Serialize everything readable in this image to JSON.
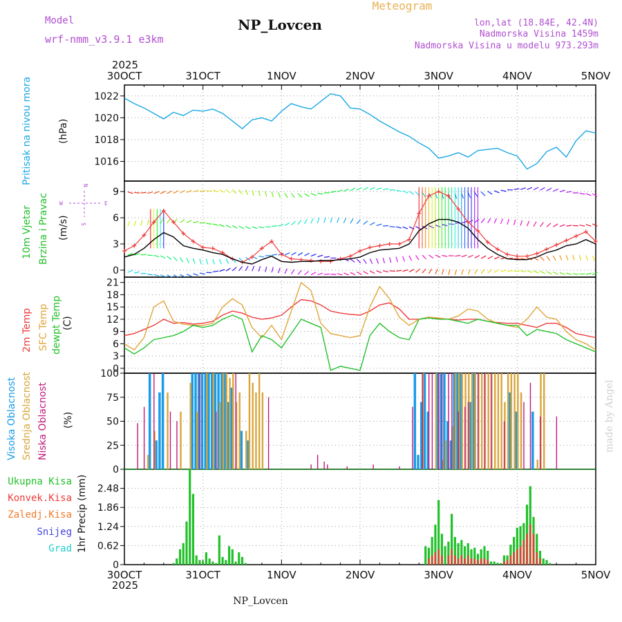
{
  "header": {
    "model_label": "Model",
    "model_name": "wrf-nmm_v3.9.1  e3km",
    "station": "NP_Lovcen",
    "product": "Meteogram",
    "coords": "lon,lat (18.84E, 42.4N)",
    "elevation": "Nadmorska Visina 1459m",
    "model_elevation": "Nadmorska Visina u modelu 973.293m",
    "footer_station": "NP_Lovcen",
    "credit": "made by Angel",
    "year_top": "2025",
    "year_bottom": "2025"
  },
  "colors": {
    "pressure": "#1aa7e6",
    "t2m": "#ee3a3a",
    "sfc": "#e0a53a",
    "dew": "#22c02a",
    "high_cloud": "#1a9be8",
    "mid_cloud": "#d9a53a",
    "low_cloud": "#c0187a",
    "total_precip": "#22c02a",
    "conv_precip": "#ee3a3a",
    "frozen_precip": "#f07a2a",
    "snow": "#4444dd",
    "graupel": "#22cccc",
    "title_purple": "#b04fd0",
    "title_orange": "#e8b050",
    "wind_speed_line": "#000000",
    "gust_line": "#ee3a3a"
  },
  "x_axis": {
    "days": [
      "30OCT",
      "31OCT",
      "1NOV",
      "2NOV",
      "3NOV",
      "4NOV",
      "5NOV"
    ],
    "hours_span": 144
  },
  "panels": {
    "pressure": {
      "ylabel_name": "Pritisak na nivou mora",
      "unit": "(hPa)"
    },
    "wind": {
      "name1": "10m Vjetar",
      "name2": "Brzina i Pravac",
      "unit": "(m/s)",
      "compass_n": "N",
      "compass_s": "S",
      "compass_e": "E",
      "compass_w": "W"
    },
    "temperature": {
      "name1": "2m Temp",
      "name2": "SFC Temp",
      "name3": "dewpt Temp",
      "unit": "(C)"
    },
    "cloud": {
      "name1": "Visoka Oblacnost",
      "name2": "Srednja Oblacnost",
      "name3": "Niska Oblacnost",
      "unit": "(%)"
    },
    "precip": {
      "name1": "Ukupna Kisa",
      "name2": "Konvek.Kisa",
      "name3": "Zaledj.Kisa",
      "name4": "Snijeg",
      "name5": "Grad",
      "unit": "1hr Precip (mm)"
    }
  },
  "chart_data": [
    {
      "type": "line",
      "title": "Pritisak na nivou mora",
      "ylabel": "(hPa)",
      "ylim": [
        1014.2,
        1023
      ],
      "yticks": [
        1016,
        1018,
        1020,
        1022
      ],
      "x_hours": [
        0,
        3,
        6,
        9,
        12,
        15,
        18,
        21,
        24,
        27,
        30,
        33,
        36,
        39,
        42,
        45,
        48,
        51,
        54,
        57,
        60,
        63,
        66,
        69,
        72,
        75,
        78,
        81,
        84,
        87,
        90,
        93,
        96,
        99,
        102,
        105,
        108,
        111,
        114,
        117,
        120,
        123,
        126,
        129,
        132,
        135,
        138,
        141,
        144
      ],
      "series": [
        {
          "name": "SLP",
          "values": [
            1021.8,
            1021.3,
            1020.9,
            1020.4,
            1019.9,
            1020.5,
            1020.2,
            1020.7,
            1020.6,
            1020.8,
            1020.4,
            1019.7,
            1019.0,
            1019.8,
            1020.0,
            1019.7,
            1020.6,
            1021.3,
            1021.0,
            1020.8,
            1021.5,
            1022.2,
            1022.0,
            1020.9,
            1020.8,
            1020.3,
            1019.7,
            1019.2,
            1018.7,
            1018.3,
            1017.7,
            1017.2,
            1016.3,
            1016.5,
            1016.8,
            1016.4,
            1017.0,
            1017.1,
            1017.2,
            1016.8,
            1016.5,
            1015.3,
            1015.8,
            1016.9,
            1017.3,
            1016.4,
            1017.9,
            1018.8,
            1018.6
          ]
        }
      ]
    },
    {
      "type": "line",
      "title": "10m Vjetar Brzina i Pravac",
      "ylabel": "(m/s)",
      "ylim": [
        -0.8,
        10.2
      ],
      "yticks": [
        0,
        3,
        6,
        9
      ],
      "x_hours": [
        0,
        3,
        6,
        9,
        12,
        15,
        18,
        21,
        24,
        27,
        30,
        33,
        36,
        39,
        42,
        45,
        48,
        51,
        54,
        57,
        60,
        63,
        66,
        69,
        72,
        75,
        78,
        81,
        84,
        87,
        90,
        93,
        96,
        99,
        102,
        105,
        108,
        111,
        114,
        117,
        120,
        123,
        126,
        129,
        132,
        135,
        138,
        141,
        144
      ],
      "series": [
        {
          "name": "wind speed",
          "values": [
            1.5,
            1.8,
            2.5,
            3.5,
            4.3,
            3.8,
            2.8,
            2.5,
            2.3,
            2.0,
            1.8,
            1.3,
            0.9,
            0.7,
            1.2,
            1.6,
            1.0,
            0.9,
            1.0,
            1.0,
            1.1,
            1.1,
            1.2,
            1.3,
            1.5,
            2.0,
            2.3,
            2.4,
            2.5,
            3.0,
            4.5,
            5.3,
            5.8,
            5.8,
            5.5,
            4.8,
            3.5,
            2.5,
            1.8,
            1.3,
            1.2,
            1.2,
            1.5,
            2.0,
            2.3,
            2.8,
            3.0,
            3.5,
            3.0
          ]
        },
        {
          "name": "gust",
          "values": [
            2.2,
            2.8,
            4.0,
            5.5,
            6.8,
            5.5,
            4.2,
            3.3,
            2.6,
            2.5,
            2.0,
            1.3,
            0.9,
            1.5,
            2.5,
            3.3,
            1.8,
            1.3,
            1.2,
            1.1,
            1.0,
            1.0,
            1.3,
            1.6,
            2.2,
            2.6,
            2.8,
            3.0,
            3.0,
            3.5,
            6.5,
            8.5,
            9.0,
            8.5,
            7.0,
            5.5,
            4.5,
            3.2,
            2.4,
            1.8,
            1.6,
            1.6,
            1.9,
            2.4,
            2.9,
            3.4,
            3.9,
            4.4,
            3.3
          ]
        }
      ]
    },
    {
      "type": "line",
      "title": "2m Temp / SFC Temp / dewpt Temp",
      "ylabel": "(C)",
      "ylim": [
        -1.2,
        22.3
      ],
      "yticks": [
        0,
        3,
        6,
        9,
        12,
        15,
        18,
        21
      ],
      "x_hours": [
        0,
        3,
        6,
        9,
        12,
        15,
        18,
        21,
        24,
        27,
        30,
        33,
        36,
        39,
        42,
        45,
        48,
        51,
        54,
        57,
        60,
        63,
        66,
        69,
        72,
        75,
        78,
        81,
        84,
        87,
        90,
        93,
        96,
        99,
        102,
        105,
        108,
        111,
        114,
        117,
        120,
        123,
        126,
        129,
        132,
        135,
        138,
        141,
        144
      ],
      "series": [
        {
          "name": "2m Temp",
          "values": [
            8.0,
            8.5,
            9.5,
            10.5,
            12.0,
            11.0,
            11.2,
            10.8,
            11.0,
            11.5,
            13.0,
            14.0,
            13.5,
            12.5,
            12.0,
            12.3,
            13.0,
            15.0,
            16.8,
            16.5,
            15.5,
            14.0,
            13.5,
            13.2,
            13.0,
            14.0,
            15.5,
            16.0,
            14.5,
            12.0,
            12.0,
            12.5,
            12.2,
            12.0,
            11.8,
            12.0,
            12.0,
            11.5,
            11.2,
            11.0,
            11.0,
            10.5,
            10.0,
            11.0,
            11.0,
            10.0,
            8.5,
            8.0,
            7.5
          ]
        },
        {
          "name": "SFC Temp",
          "values": [
            6.0,
            4.5,
            7.5,
            15.0,
            16.5,
            11.5,
            10.8,
            10.5,
            10.5,
            11.0,
            15.0,
            17.0,
            15.5,
            10.0,
            7.5,
            10.5,
            7.0,
            14.0,
            21.0,
            19.0,
            11.0,
            8.5,
            8.0,
            7.5,
            8.0,
            15.0,
            20.0,
            17.0,
            12.5,
            10.5,
            12.0,
            12.5,
            12.3,
            12.0,
            12.8,
            14.5,
            14.0,
            12.0,
            11.0,
            10.5,
            10.0,
            12.0,
            15.0,
            12.5,
            12.0,
            9.0,
            7.0,
            6.0,
            4.5
          ]
        },
        {
          "name": "dewpt Temp",
          "values": [
            5.0,
            3.5,
            5.0,
            7.0,
            7.5,
            8.0,
            9.0,
            10.5,
            10.0,
            10.5,
            12.0,
            13.0,
            12.0,
            4.0,
            8.0,
            7.0,
            5.0,
            8.5,
            12.0,
            11.0,
            10.0,
            -0.5,
            0.5,
            0.0,
            -0.5,
            8.0,
            11.0,
            9.0,
            7.5,
            7.0,
            12.0,
            12.3,
            12.0,
            12.0,
            11.5,
            11.0,
            12.0,
            11.5,
            11.0,
            10.5,
            10.5,
            8.0,
            9.5,
            9.0,
            8.5,
            7.0,
            6.0,
            5.0,
            4.0
          ]
        }
      ]
    },
    {
      "type": "bar",
      "title": "Visoka / Srednja / Niska Oblacnost",
      "ylabel": "(%)",
      "ylim": [
        0,
        100
      ],
      "yticks": [
        0,
        25,
        50,
        75,
        100
      ],
      "series": [
        {
          "name": "Visoka Oblacnost",
          "hours": [
            8,
            10,
            11,
            12,
            21,
            22,
            23,
            24,
            25,
            26,
            27,
            28,
            29,
            30,
            31,
            32,
            33,
            36,
            38,
            89,
            90,
            91,
            92,
            93,
            96,
            97,
            98,
            99,
            100,
            101,
            102,
            103,
            106,
            107,
            118,
            120,
            125
          ],
          "values": [
            100,
            30,
            80,
            100,
            100,
            100,
            100,
            100,
            100,
            100,
            100,
            100,
            100,
            100,
            100,
            70,
            85,
            40,
            30,
            100,
            15,
            70,
            100,
            60,
            100,
            100,
            100,
            50,
            30,
            100,
            100,
            100,
            70,
            100,
            80,
            60,
            60
          ]
        },
        {
          "name": "Srednja Oblacnost",
          "hours": [
            7,
            9,
            13,
            17,
            20,
            22,
            25,
            27,
            29,
            30,
            31,
            32,
            33,
            34,
            35,
            37,
            38,
            39,
            40,
            41,
            42,
            91,
            95,
            97,
            98,
            100,
            101,
            102,
            103,
            104,
            105,
            106,
            107,
            108,
            109,
            110,
            111,
            112,
            113,
            114,
            115,
            116,
            117,
            118,
            119,
            120,
            121,
            126,
            127,
            128
          ],
          "values": [
            15,
            40,
            80,
            60,
            90,
            60,
            100,
            100,
            70,
            100,
            100,
            95,
            100,
            70,
            80,
            40,
            100,
            90,
            80,
            100,
            80,
            100,
            100,
            10,
            30,
            45,
            100,
            100,
            100,
            100,
            100,
            100,
            100,
            100,
            100,
            100,
            100,
            100,
            100,
            100,
            100,
            70,
            100,
            100,
            100,
            100,
            80,
            10,
            100,
            100
          ]
        },
        {
          "name": "Niska Oblacnost",
          "hours": [
            4,
            6,
            9,
            14,
            16,
            23,
            28,
            34,
            44,
            57,
            59,
            61,
            62,
            68,
            76,
            84,
            88,
            91,
            93,
            94,
            96,
            97,
            99,
            100,
            102,
            104,
            105,
            108,
            110,
            112,
            116,
            122,
            124,
            127,
            132
          ],
          "values": [
            48,
            65,
            100,
            60,
            50,
            100,
            60,
            100,
            75,
            5,
            15,
            8,
            5,
            3,
            5,
            3,
            65,
            100,
            100,
            100,
            100,
            100,
            100,
            100,
            60,
            65,
            70,
            100,
            100,
            100,
            50,
            70,
            90,
            55,
            55
          ]
        }
      ]
    },
    {
      "type": "bar",
      "title": "1hr Precip",
      "ylabel": "1hr Precip (mm)",
      "ylim": [
        0,
        3.1
      ],
      "yticks": [
        0,
        0.62,
        1.24,
        1.86,
        2.48
      ],
      "series": [
        {
          "name": "Ukupna Kisa",
          "hours": [
            15,
            16,
            17,
            18,
            19,
            20,
            21,
            22,
            23,
            24,
            25,
            26,
            27,
            28,
            29,
            30,
            31,
            32,
            33,
            34,
            35,
            36,
            37,
            92,
            93,
            94,
            95,
            96,
            97,
            98,
            99,
            100,
            101,
            102,
            103,
            104,
            105,
            106,
            107,
            108,
            109,
            110,
            111,
            112,
            113,
            114,
            115,
            116,
            117,
            118,
            119,
            120,
            121,
            122,
            123,
            124,
            125,
            126,
            127,
            128,
            129,
            130
          ],
          "values": [
            0.05,
            0.2,
            0.5,
            0.7,
            1.4,
            3.1,
            2.3,
            0.3,
            0.15,
            0.1,
            0.4,
            0.2,
            0.1,
            0.05,
            0.95,
            0.25,
            0.15,
            0.6,
            0.5,
            0.1,
            0.4,
            0.25,
            0.05,
            0.6,
            0.55,
            0.9,
            1.3,
            2.1,
            1.0,
            0.6,
            0.75,
            1.65,
            0.9,
            0.7,
            0.8,
            0.6,
            0.7,
            0.5,
            0.55,
            0.35,
            0.5,
            0.6,
            0.45,
            0.1,
            0.1,
            0.05,
            0.05,
            0.3,
            0.3,
            0.65,
            0.9,
            1.2,
            1.25,
            1.35,
            1.95,
            2.55,
            1.55,
            1.0,
            0.45,
            0.2,
            0.15,
            0.05
          ]
        },
        {
          "name": "Konvek.Kisa",
          "hours": [
            93,
            94,
            95,
            96,
            97,
            99,
            100,
            101,
            102,
            103,
            104,
            105,
            106,
            107,
            108,
            109,
            110,
            111,
            116,
            117,
            118,
            119,
            120,
            121,
            122,
            123,
            124,
            125,
            126,
            127
          ],
          "values": [
            0.2,
            0.3,
            0.4,
            0.5,
            0.3,
            0.3,
            0.5,
            0.3,
            0.2,
            0.3,
            0.2,
            0.3,
            0.2,
            0.2,
            0.15,
            0.2,
            0.2,
            0.15,
            0.1,
            0.15,
            0.3,
            0.4,
            0.5,
            0.6,
            0.8,
            1.0,
            1.3,
            1.0,
            0.4,
            0.2
          ]
        }
      ]
    }
  ]
}
